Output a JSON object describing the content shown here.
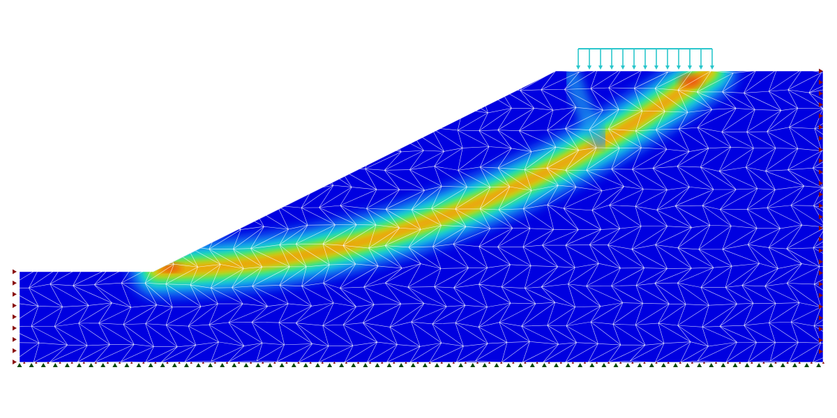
{
  "model": {
    "colormap": [
      "#0000e0",
      "#0a4cf0",
      "#1aa0ee",
      "#18d8e8",
      "#22e8a0",
      "#4ee84a",
      "#b4ec20",
      "#f4ec10",
      "#f8a410",
      "#ec3c0c"
    ],
    "mesh_color": "#ffffff",
    "load_color": "#2ac6cc",
    "horizontal_support_color": "#8a1010",
    "vertical_support_color": "#0a4a0a"
  }
}
